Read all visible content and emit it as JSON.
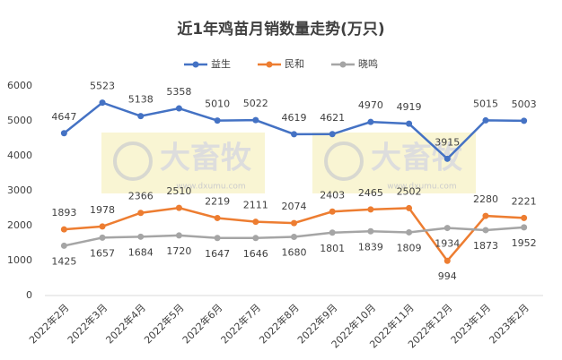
{
  "chart_data": {
    "type": "line",
    "title": "近1年鸡苗月销数量走势(万只)",
    "categories": [
      "2022年2月",
      "2022年3月",
      "2022年4月",
      "2022年5月",
      "2022年6月",
      "2022年7月",
      "2022年8月",
      "2022年9月",
      "2022年10月",
      "2022年11月",
      "2022年12月",
      "2023年1月",
      "2023年2月"
    ],
    "series": [
      {
        "name": "益生",
        "color": "#4472c4",
        "values": [
          4647,
          5523,
          5138,
          5358,
          5010,
          5022,
          4619,
          4621,
          4970,
          4919,
          3915,
          5015,
          5003
        ]
      },
      {
        "name": "民和",
        "color": "#ed7d31",
        "values": [
          1893,
          1978,
          2366,
          2510,
          2219,
          2111,
          2074,
          2403,
          2465,
          2502,
          994,
          2280,
          2221
        ]
      },
      {
        "name": "晓鸣",
        "color": "#a5a5a5",
        "values": [
          1425,
          1657,
          1684,
          1720,
          1647,
          1646,
          1680,
          1801,
          1839,
          1809,
          1934,
          1873,
          1952
        ]
      }
    ],
    "ylim": [
      0,
      6000
    ],
    "yticks": [
      0,
      1000,
      2000,
      3000,
      4000,
      5000,
      6000
    ],
    "grid": false,
    "legend": "top",
    "watermark": "大畜牧",
    "watermark_url": "www.dxumu.com"
  }
}
